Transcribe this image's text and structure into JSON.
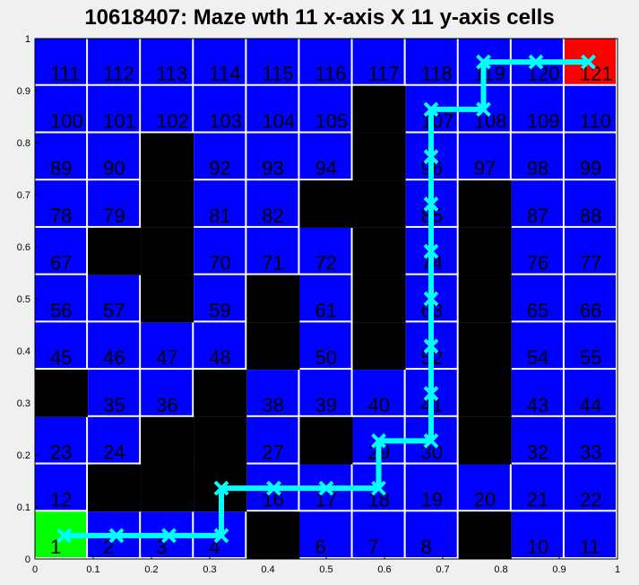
{
  "title": "10618407: Maze wth 11 x-axis X 11 y-axis cells",
  "chart_data": {
    "type": "heatmap",
    "title": "10618407: Maze wth 11 x-axis X 11 y-axis cells",
    "rows": 11,
    "cols": 11,
    "xlim": [
      0,
      1
    ],
    "ylim": [
      0,
      1
    ],
    "xticks": [
      "0",
      "0.1",
      "0.2",
      "0.3",
      "0.4",
      "0.5",
      "0.6",
      "0.7",
      "0.8",
      "0.9",
      "1"
    ],
    "yticks": [
      "0",
      "0.1",
      "0.2",
      "0.3",
      "0.4",
      "0.5",
      "0.6",
      "0.7",
      "0.8",
      "0.9",
      "1"
    ],
    "open_cells": [
      1,
      2,
      3,
      4,
      6,
      7,
      8,
      10,
      11,
      12,
      16,
      17,
      18,
      19,
      20,
      21,
      22,
      23,
      24,
      27,
      29,
      30,
      32,
      33,
      35,
      36,
      38,
      39,
      40,
      41,
      43,
      44,
      45,
      46,
      47,
      48,
      50,
      52,
      54,
      55,
      56,
      57,
      59,
      61,
      63,
      65,
      66,
      67,
      70,
      71,
      72,
      74,
      76,
      77,
      78,
      79,
      81,
      82,
      85,
      87,
      88,
      89,
      90,
      92,
      93,
      94,
      96,
      97,
      98,
      99,
      100,
      101,
      102,
      103,
      104,
      105,
      107,
      108,
      109,
      110,
      111,
      112,
      113,
      114,
      115,
      116,
      117,
      118,
      119,
      120,
      121
    ],
    "wall_cells": [
      5,
      9,
      13,
      14,
      15,
      25,
      26,
      28,
      31,
      34,
      37,
      42,
      49,
      51,
      53,
      58,
      60,
      62,
      64,
      68,
      69,
      73,
      75,
      80,
      83,
      84,
      86,
      91,
      95,
      106
    ],
    "start_cell": 1,
    "goal_cell": 121,
    "path": [
      [
        0.05,
        0.045
      ],
      [
        0.14,
        0.045
      ],
      [
        0.23,
        0.045
      ],
      [
        0.32,
        0.045
      ],
      [
        0.32,
        0.136
      ],
      [
        0.41,
        0.136
      ],
      [
        0.5,
        0.136
      ],
      [
        0.59,
        0.136
      ],
      [
        0.59,
        0.227
      ],
      [
        0.68,
        0.227
      ],
      [
        0.68,
        0.318
      ],
      [
        0.68,
        0.409
      ],
      [
        0.68,
        0.5
      ],
      [
        0.68,
        0.591
      ],
      [
        0.68,
        0.682
      ],
      [
        0.68,
        0.773
      ],
      [
        0.68,
        0.864
      ],
      [
        0.77,
        0.864
      ],
      [
        0.77,
        0.955
      ],
      [
        0.86,
        0.955
      ],
      [
        0.95,
        0.955
      ]
    ],
    "colors": {
      "open": "#0000ff",
      "wall": "#000000",
      "start": "#00ff00",
      "goal": "#ff0000",
      "path": "#00ffff"
    }
  }
}
